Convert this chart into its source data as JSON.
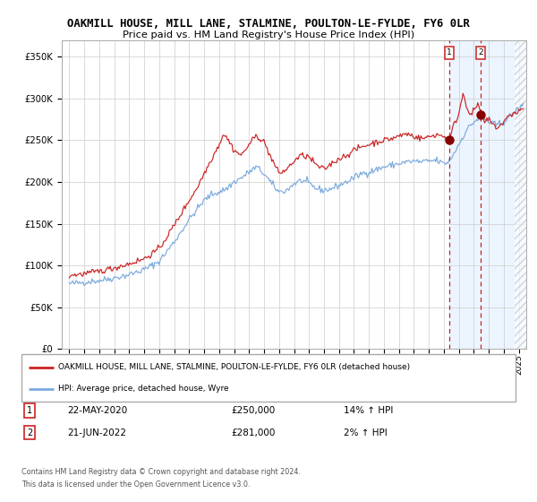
{
  "title": "OAKMILL HOUSE, MILL LANE, STALMINE, POULTON-LE-FYLDE, FY6 0LR",
  "subtitle": "Price paid vs. HM Land Registry's House Price Index (HPI)",
  "legend_line1": "OAKMILL HOUSE, MILL LANE, STALMINE, POULTON-LE-FYLDE, FY6 0LR (detached house)",
  "legend_line2": "HPI: Average price, detached house, Wyre",
  "annotation1_label": "1",
  "annotation1_date": "22-MAY-2020",
  "annotation1_price": "£250,000",
  "annotation1_hpi": "14% ↑ HPI",
  "annotation2_label": "2",
  "annotation2_date": "21-JUN-2022",
  "annotation2_price": "£281,000",
  "annotation2_hpi": "2% ↑ HPI",
  "footnote1": "Contains HM Land Registry data © Crown copyright and database right 2024.",
  "footnote2": "This data is licensed under the Open Government Licence v3.0.",
  "hpi_color": "#7aaadd",
  "price_color": "#cc2222",
  "point_color": "#880000",
  "shade_color": "#ddeeff",
  "marker1_x": 2020.38,
  "marker1_y": 250000,
  "marker2_x": 2022.47,
  "marker2_y": 281000,
  "vline1_x": 2020.38,
  "vline2_x": 2022.47,
  "shade_start": 2020.38,
  "shade_end": 2025.5,
  "hatch_start": 2024.75,
  "ylim": [
    0,
    370000
  ],
  "xlim": [
    1994.5,
    2025.5
  ]
}
